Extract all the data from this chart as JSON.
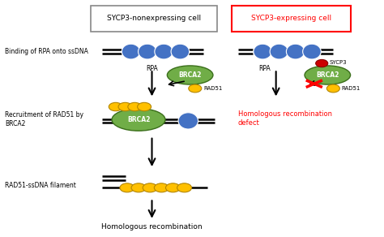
{
  "left_box_label": "SYCP3-nonexpressing cell",
  "right_box_label": "SYCP3-expressing cell",
  "blue_oval_color": "#4472c4",
  "green_oval_color": "#70ad47",
  "yellow_circle_color": "#ffc000",
  "yellow_edge_color": "#b38600",
  "red_dot_color": "#cc0000",
  "step1_label": "Binding of RPA onto ssDNA",
  "step2_label": "Recruitment of RAD51 by\nBRCA2",
  "step3_label": "RAD51-ssDNA filament",
  "bottom_label": "Homologous recombination",
  "right_red_label": "Homologous recombination\ndefect",
  "label_rpa": "RPA",
  "label_brca2": "BRCA2",
  "label_rad51": "RAD51",
  "label_sycp3": "SYCP3",
  "bg_color": "#ffffff"
}
